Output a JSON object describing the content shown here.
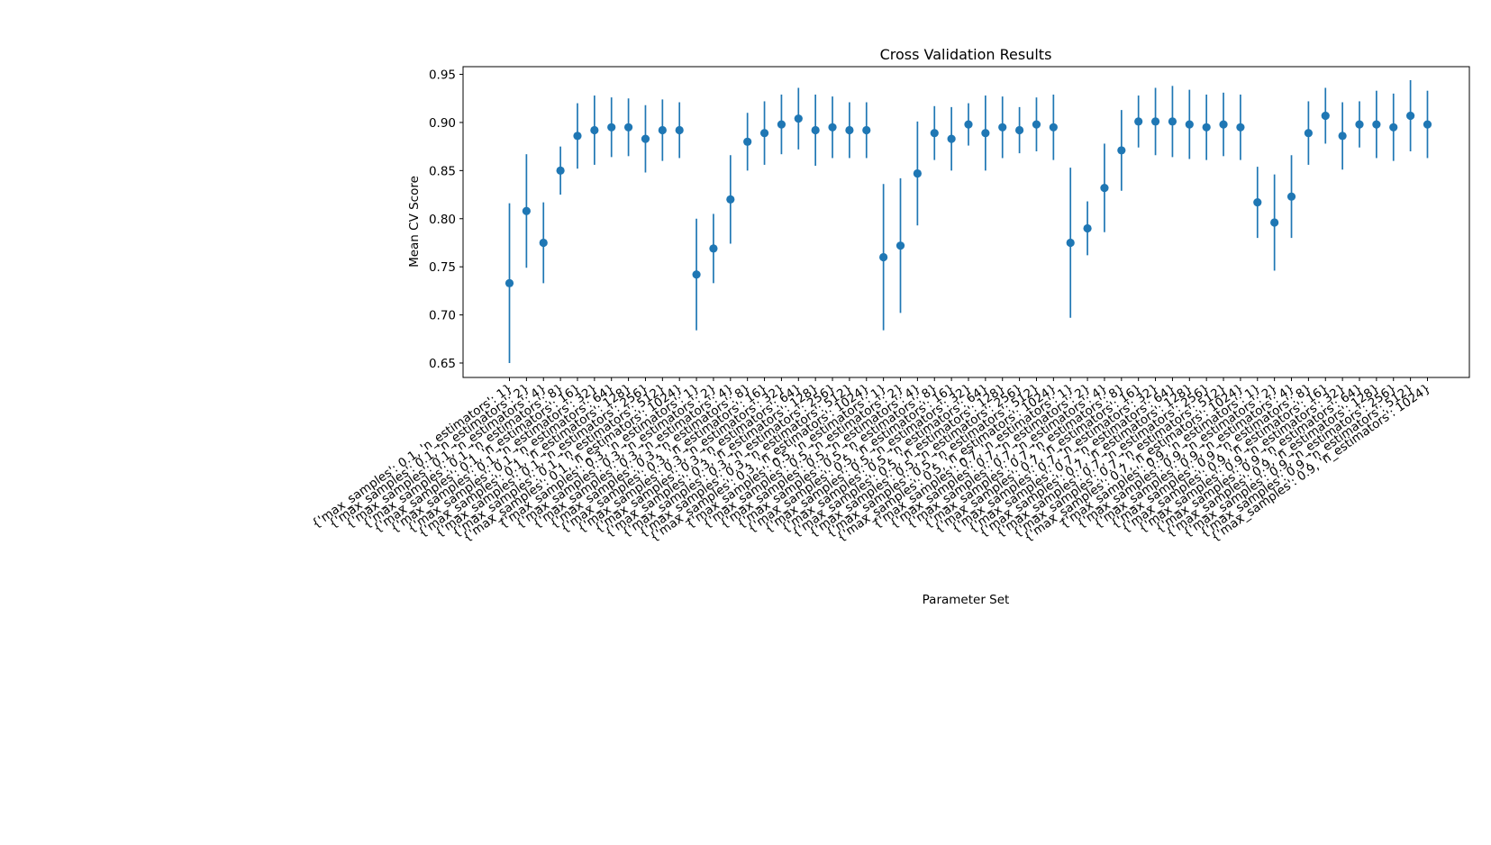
{
  "chart_data": {
    "type": "scatter",
    "title": "Cross Validation Results",
    "xlabel": "Parameter Set",
    "ylabel": "Mean CV Score",
    "ylim": [
      0.635,
      0.958
    ],
    "yticks": [
      "0.65",
      "0.70",
      "0.75",
      "0.80",
      "0.85",
      "0.90",
      "0.95"
    ],
    "grid": false,
    "error_bars": true,
    "color": "#1f77b4",
    "categories": [
      "{'max_samples': 0.1, 'n_estimators': 1}",
      "{'max_samples': 0.1, 'n_estimators': 2}",
      "{'max_samples': 0.1, 'n_estimators': 4}",
      "{'max_samples': 0.1, 'n_estimators': 8}",
      "{'max_samples': 0.1, 'n_estimators': 16}",
      "{'max_samples': 0.1, 'n_estimators': 32}",
      "{'max_samples': 0.1, 'n_estimators': 64}",
      "{'max_samples': 0.1, 'n_estimators': 128}",
      "{'max_samples': 0.1, 'n_estimators': 256}",
      "{'max_samples': 0.1, 'n_estimators': 512}",
      "{'max_samples': 0.1, 'n_estimators': 1024}",
      "{'max_samples': 0.3, 'n_estimators': 1}",
      "{'max_samples': 0.3, 'n_estimators': 2}",
      "{'max_samples': 0.3, 'n_estimators': 4}",
      "{'max_samples': 0.3, 'n_estimators': 8}",
      "{'max_samples': 0.3, 'n_estimators': 16}",
      "{'max_samples': 0.3, 'n_estimators': 32}",
      "{'max_samples': 0.3, 'n_estimators': 64}",
      "{'max_samples': 0.3, 'n_estimators': 128}",
      "{'max_samples': 0.3, 'n_estimators': 256}",
      "{'max_samples': 0.3, 'n_estimators': 512}",
      "{'max_samples': 0.3, 'n_estimators': 1024}",
      "{'max_samples': 0.5, 'n_estimators': 1}",
      "{'max_samples': 0.5, 'n_estimators': 2}",
      "{'max_samples': 0.5, 'n_estimators': 4}",
      "{'max_samples': 0.5, 'n_estimators': 8}",
      "{'max_samples': 0.5, 'n_estimators': 16}",
      "{'max_samples': 0.5, 'n_estimators': 32}",
      "{'max_samples': 0.5, 'n_estimators': 64}",
      "{'max_samples': 0.5, 'n_estimators': 128}",
      "{'max_samples': 0.5, 'n_estimators': 256}",
      "{'max_samples': 0.5, 'n_estimators': 512}",
      "{'max_samples': 0.5, 'n_estimators': 1024}",
      "{'max_samples': 0.7, 'n_estimators': 1}",
      "{'max_samples': 0.7, 'n_estimators': 2}",
      "{'max_samples': 0.7, 'n_estimators': 4}",
      "{'max_samples': 0.7, 'n_estimators': 8}",
      "{'max_samples': 0.7, 'n_estimators': 16}",
      "{'max_samples': 0.7, 'n_estimators': 32}",
      "{'max_samples': 0.7, 'n_estimators': 64}",
      "{'max_samples': 0.7, 'n_estimators': 128}",
      "{'max_samples': 0.7, 'n_estimators': 256}",
      "{'max_samples': 0.7, 'n_estimators': 512}",
      "{'max_samples': 0.7, 'n_estimators': 1024}",
      "{'max_samples': 0.9, 'n_estimators': 1}",
      "{'max_samples': 0.9, 'n_estimators': 2}",
      "{'max_samples': 0.9, 'n_estimators': 4}",
      "{'max_samples': 0.9, 'n_estimators': 8}",
      "{'max_samples': 0.9, 'n_estimators': 16}",
      "{'max_samples': 0.9, 'n_estimators': 32}",
      "{'max_samples': 0.9, 'n_estimators': 64}",
      "{'max_samples': 0.9, 'n_estimators': 128}",
      "{'max_samples': 0.9, 'n_estimators': 256}",
      "{'max_samples': 0.9, 'n_estimators': 512}",
      "{'max_samples': 0.9, 'n_estimators': 1024}"
    ],
    "series": [
      {
        "values": [
          0.733,
          0.808,
          0.775,
          0.85,
          0.886,
          0.892,
          0.895,
          0.895,
          0.883,
          0.892,
          0.892,
          0.742,
          0.769,
          0.82,
          0.88,
          0.889,
          0.898,
          0.904,
          0.892,
          0.895,
          0.892,
          0.892,
          0.76,
          0.772,
          0.847,
          0.889,
          0.883,
          0.898,
          0.889,
          0.895,
          0.892,
          0.898,
          0.895,
          0.775,
          0.79,
          0.832,
          0.871,
          0.901,
          0.901,
          0.901,
          0.898,
          0.895,
          0.898,
          0.895,
          0.817,
          0.796,
          0.823,
          0.889,
          0.907,
          0.886,
          0.898,
          0.898,
          0.895,
          0.907,
          0.898
        ],
        "errors": [
          0.083,
          0.059,
          0.042,
          0.025,
          0.034,
          0.036,
          0.031,
          0.03,
          0.035,
          0.032,
          0.029,
          0.058,
          0.036,
          0.046,
          0.03,
          0.033,
          0.031,
          0.032,
          0.037,
          0.032,
          0.029,
          0.029,
          0.076,
          0.07,
          0.054,
          0.028,
          0.033,
          0.022,
          0.039,
          0.032,
          0.024,
          0.028,
          0.034,
          0.078,
          0.028,
          0.046,
          0.042,
          0.027,
          0.035,
          0.037,
          0.036,
          0.034,
          0.033,
          0.034,
          0.037,
          0.05,
          0.043,
          0.033,
          0.029,
          0.035,
          0.024,
          0.035,
          0.035,
          0.037,
          0.035
        ]
      }
    ]
  }
}
